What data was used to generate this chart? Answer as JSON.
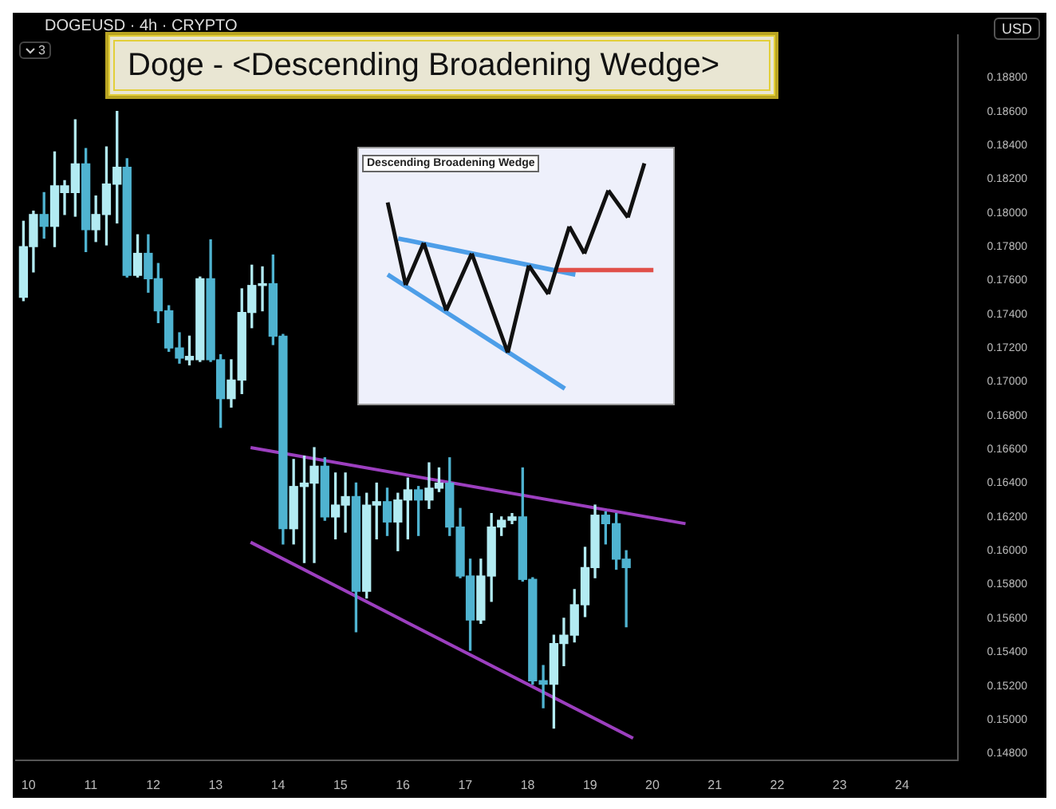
{
  "chart_data": [
    {
      "type": "candlestick",
      "title": "Doge - <Descending Broadening Wedge>",
      "subtitle": "DOGEUSD · 4h · CRYPTO",
      "ylabel": "USD",
      "annotations": [
        "3"
      ],
      "x": [
        9.92,
        10.08,
        10.25,
        10.42,
        10.58,
        10.75,
        10.92,
        11.08,
        11.25,
        11.42,
        11.58,
        11.75,
        11.92,
        12.08,
        12.25,
        12.42,
        12.58,
        12.75,
        12.92,
        13.08,
        13.25,
        13.42,
        13.58,
        13.75,
        13.92,
        14.08,
        14.25,
        14.42,
        14.58,
        14.75,
        14.92,
        15.08,
        15.25,
        15.42,
        15.58,
        15.75,
        15.92,
        16.08,
        16.25,
        16.42,
        16.58,
        16.75,
        16.92,
        17.08,
        17.25,
        17.42,
        17.58,
        17.75,
        17.92,
        18.08,
        18.25,
        18.42,
        18.58,
        18.75,
        18.92,
        19.08,
        19.25,
        19.42,
        19.58
      ],
      "ohlc": [
        [
          0.175,
          0.1795,
          0.1748,
          0.178
        ],
        [
          0.178,
          0.1801,
          0.1765,
          0.1799
        ],
        [
          0.1799,
          0.1812,
          0.1785,
          0.1792
        ],
        [
          0.1792,
          0.1836,
          0.178,
          0.1816
        ],
        [
          0.1812,
          0.1819,
          0.1799,
          0.1816
        ],
        [
          0.1812,
          0.1855,
          0.1798,
          0.1829
        ],
        [
          0.1829,
          0.1838,
          0.1777,
          0.179
        ],
        [
          0.179,
          0.181,
          0.1783,
          0.1799
        ],
        [
          0.1799,
          0.1839,
          0.1781,
          0.1817
        ],
        [
          0.1817,
          0.186,
          0.1794,
          0.1827
        ],
        [
          0.1827,
          0.1832,
          0.1762,
          0.1763
        ],
        [
          0.1763,
          0.1787,
          0.1762,
          0.1776
        ],
        [
          0.1776,
          0.1787,
          0.1753,
          0.1761
        ],
        [
          0.1761,
          0.177,
          0.1735,
          0.1742
        ],
        [
          0.1742,
          0.1745,
          0.1718,
          0.172
        ],
        [
          0.172,
          0.1729,
          0.1711,
          0.1714
        ],
        [
          0.1713,
          0.1727,
          0.171,
          0.1715
        ],
        [
          0.1713,
          0.1762,
          0.1712,
          0.1761
        ],
        [
          0.1761,
          0.1784,
          0.1712,
          0.1713
        ],
        [
          0.1713,
          0.1716,
          0.1673,
          0.169
        ],
        [
          0.169,
          0.1713,
          0.1685,
          0.1701
        ],
        [
          0.1701,
          0.1755,
          0.1693,
          0.1741
        ],
        [
          0.1741,
          0.1769,
          0.1732,
          0.1757
        ],
        [
          0.1757,
          0.1768,
          0.1742,
          0.1758
        ],
        [
          0.1758,
          0.1775,
          0.1722,
          0.1727
        ],
        [
          0.1727,
          0.1728,
          0.1604,
          0.1613
        ],
        [
          0.1613,
          0.1654,
          0.1604,
          0.1638
        ],
        [
          0.1638,
          0.1656,
          0.1593,
          0.164
        ],
        [
          0.164,
          0.1661,
          0.1593,
          0.165
        ],
        [
          0.165,
          0.1655,
          0.1618,
          0.162
        ],
        [
          0.162,
          0.1646,
          0.1607,
          0.1627
        ],
        [
          0.1627,
          0.1646,
          0.1611,
          0.1632
        ],
        [
          0.1632,
          0.164,
          0.1552,
          0.1576
        ],
        [
          0.1576,
          0.1634,
          0.1572,
          0.1627
        ],
        [
          0.1627,
          0.164,
          0.1607,
          0.1629
        ],
        [
          0.1629,
          0.1637,
          0.1609,
          0.1617
        ],
        [
          0.1617,
          0.1634,
          0.16,
          0.163
        ],
        [
          0.163,
          0.1643,
          0.1607,
          0.1636
        ],
        [
          0.1636,
          0.1638,
          0.1609,
          0.163
        ],
        [
          0.163,
          0.1652,
          0.1625,
          0.1637
        ],
        [
          0.1637,
          0.1649,
          0.1635,
          0.164
        ],
        [
          0.164,
          0.1655,
          0.1609,
          0.1614
        ],
        [
          0.1614,
          0.1625,
          0.1584,
          0.1585
        ],
        [
          0.1585,
          0.1595,
          0.1541,
          0.1559
        ],
        [
          0.1559,
          0.1595,
          0.1557,
          0.1585
        ],
        [
          0.1585,
          0.1622,
          0.157,
          0.1614
        ],
        [
          0.1614,
          0.162,
          0.1609,
          0.1618
        ],
        [
          0.1618,
          0.1622,
          0.1616,
          0.162
        ],
        [
          0.162,
          0.1649,
          0.1582,
          0.1583
        ],
        [
          0.1583,
          0.1584,
          0.1521,
          0.1523
        ],
        [
          0.1523,
          0.1532,
          0.1507,
          0.1521
        ],
        [
          0.1521,
          0.155,
          0.1495,
          0.1545
        ],
        [
          0.1545,
          0.156,
          0.1532,
          0.155
        ],
        [
          0.155,
          0.1577,
          0.1546,
          0.1568
        ],
        [
          0.1568,
          0.1602,
          0.1561,
          0.159
        ],
        [
          0.159,
          0.1627,
          0.1584,
          0.1621
        ],
        [
          0.1621,
          0.1623,
          0.1604,
          0.1616
        ],
        [
          0.1616,
          0.1622,
          0.1589,
          0.1595
        ],
        [
          0.1595,
          0.16,
          0.1555,
          0.159
        ]
      ],
      "colors": [
        "#b2ebf2",
        "#b2ebf2",
        "#4fb3d0",
        "#b2ebf2",
        "#b2ebf2",
        "#b2ebf2",
        "#4fb3d0",
        "#b2ebf2",
        "#b2ebf2",
        "#b2ebf2",
        "#4fb3d0",
        "#b2ebf2",
        "#4fb3d0",
        "#4fb3d0",
        "#4fb3d0",
        "#4fb3d0",
        "#b2ebf2",
        "#b2ebf2",
        "#4fb3d0",
        "#4fb3d0",
        "#b2ebf2",
        "#b2ebf2",
        "#b2ebf2",
        "#b2ebf2",
        "#4fb3d0",
        "#4fb3d0",
        "#b2ebf2",
        "#b2ebf2",
        "#b2ebf2",
        "#4fb3d0",
        "#b2ebf2",
        "#b2ebf2",
        "#4fb3d0",
        "#b2ebf2",
        "#b2ebf2",
        "#4fb3d0",
        "#b2ebf2",
        "#b2ebf2",
        "#4fb3d0",
        "#b2ebf2",
        "#b2ebf2",
        "#4fb3d0",
        "#4fb3d0",
        "#4fb3d0",
        "#b2ebf2",
        "#b2ebf2",
        "#b2ebf2",
        "#b2ebf2",
        "#4fb3d0",
        "#4fb3d0",
        "#4fb3d0",
        "#b2ebf2",
        "#b2ebf2",
        "#b2ebf2",
        "#b2ebf2",
        "#b2ebf2",
        "#4fb3d0",
        "#4fb3d0",
        "#4fb3d0"
      ],
      "series": [
        {
          "type": "line",
          "color": "#9c3fbf",
          "x": [
            13.56,
            20.53
          ],
          "values": [
            0.1661,
            0.1616
          ]
        },
        {
          "type": "line",
          "color": "#9c3fbf",
          "x": [
            13.56,
            19.69
          ],
          "values": [
            0.1605,
            0.1489
          ]
        }
      ],
      "xlim": [
        9.8,
        24.9
      ],
      "xticks": [
        10,
        11,
        12,
        13,
        14,
        15,
        16,
        17,
        18,
        19,
        20,
        21,
        22,
        23,
        24
      ],
      "ylim": [
        0.1476,
        0.1905
      ],
      "yticks": [
        {
          "value": 0.148,
          "label": "0.14800"
        },
        {
          "value": 0.15,
          "label": "0.15000"
        },
        {
          "value": 0.152,
          "label": "0.15200"
        },
        {
          "value": 0.154,
          "label": "0.15400"
        },
        {
          "value": 0.156,
          "label": "0.15600"
        },
        {
          "value": 0.158,
          "label": "0.15800"
        },
        {
          "value": 0.16,
          "label": "0.16000"
        },
        {
          "value": 0.162,
          "label": "0.16200"
        },
        {
          "value": 0.164,
          "label": "0.16400"
        },
        {
          "value": 0.166,
          "label": "0.16600"
        },
        {
          "value": 0.168,
          "label": "0.16800"
        },
        {
          "value": 0.17,
          "label": "0.17000"
        },
        {
          "value": 0.172,
          "label": "0.17200"
        },
        {
          "value": 0.174,
          "label": "0.17400"
        },
        {
          "value": 0.176,
          "label": "0.17600"
        },
        {
          "value": 0.178,
          "label": "0.17800"
        },
        {
          "value": 0.18,
          "label": "0.18000"
        },
        {
          "value": 0.182,
          "label": "0.18200"
        },
        {
          "value": 0.184,
          "label": "0.18400"
        },
        {
          "value": 0.186,
          "label": "0.18600"
        },
        {
          "value": 0.188,
          "label": "0.18800"
        }
      ]
    },
    {
      "type": "other",
      "title": "Descending Broadening Wedge"
    }
  ]
}
